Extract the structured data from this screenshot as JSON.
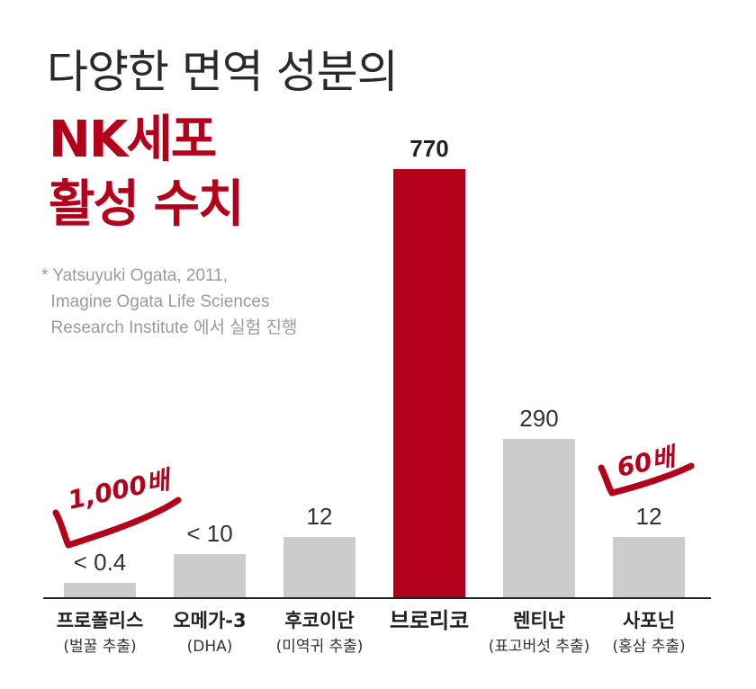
{
  "header": {
    "line1": "다양한 면역 성분의",
    "line2": "NK세포",
    "line3": "활성 수치"
  },
  "note": {
    "text": "* Yatsuyuki Ogata, 2011,\n  Imagine Ogata Life Sciences\n  Research Institute 에서 실험 진행"
  },
  "annotations": {
    "left": "1,000배",
    "right": "60배"
  },
  "colors": {
    "highlight": "#b3001b",
    "bar": "#cccccc",
    "baseline": "#222222"
  },
  "chart_data": {
    "type": "bar",
    "title": "",
    "xlabel": "",
    "ylabel": "",
    "ylim": [
      0,
      770
    ],
    "grid": false,
    "categories": [
      "프로폴리스",
      "오메가-3",
      "후코이단",
      "브로리코",
      "렌티난",
      "사포닌"
    ],
    "subcategories": [
      "(벌꿀 추출)",
      "(DHA)",
      "(미역귀 추출)",
      "",
      "(표고버섯 추출)",
      "(홍삼 추출)"
    ],
    "values": [
      0.4,
      10,
      12,
      770,
      290,
      12
    ],
    "value_labels": [
      "< 0.4",
      "< 10",
      "12",
      "770",
      "290",
      "12"
    ],
    "highlight_index": 3
  }
}
